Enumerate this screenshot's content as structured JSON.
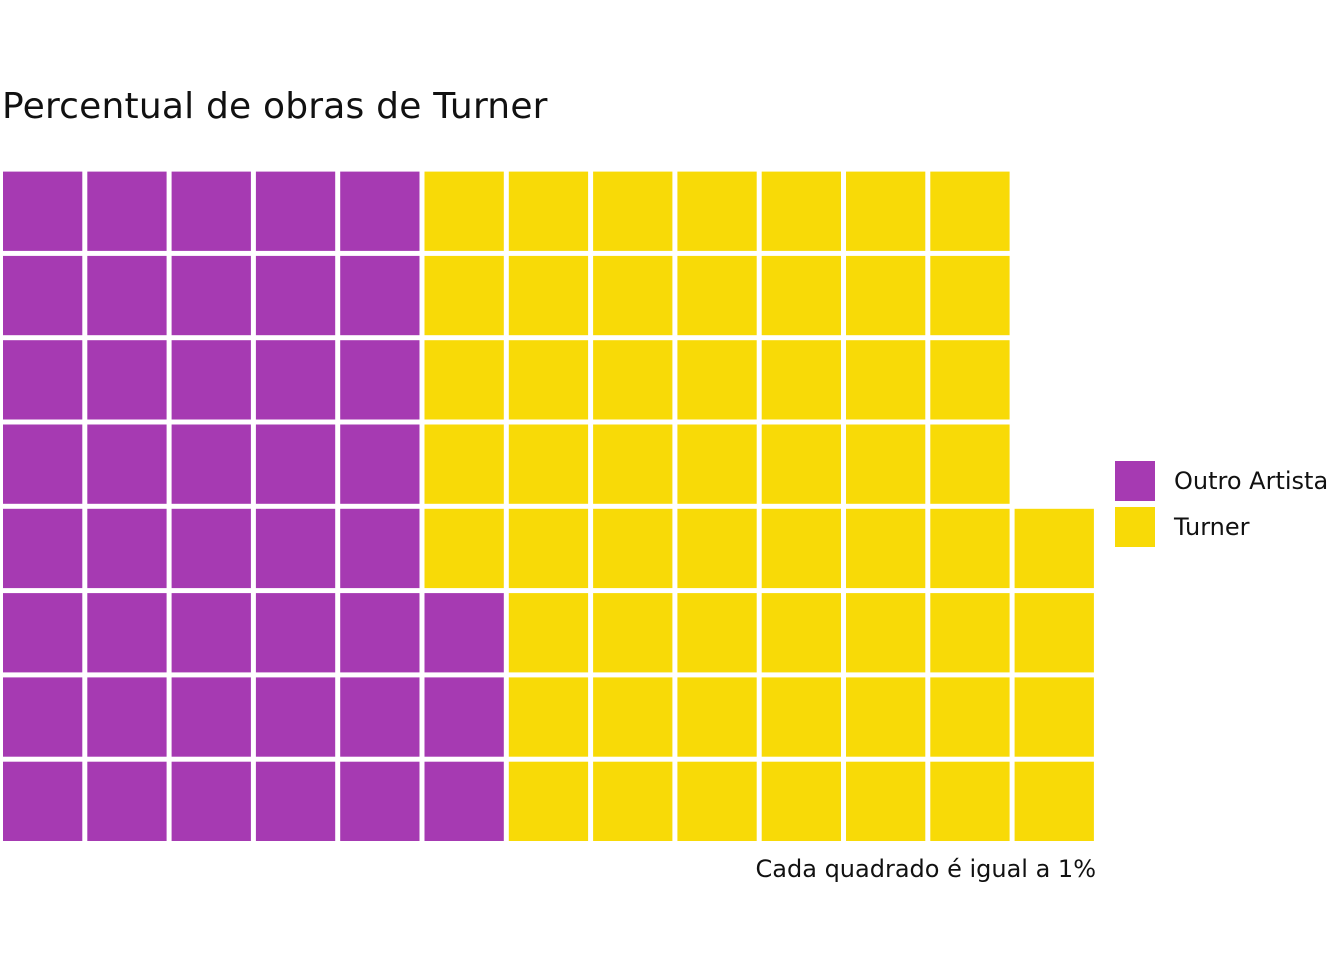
{
  "chart_data": {
    "type": "waffle",
    "title": "Percentual de obras de Turner",
    "caption": "Cada quadrado é igual a 1%",
    "columns": 13,
    "rows": 8,
    "categories": [
      "Outro Artista",
      "Turner"
    ],
    "values": [
      43,
      57
    ],
    "colors": {
      "Outro Artista": "#a63ab2",
      "Turner": "#f8da07"
    },
    "legend_position": "right",
    "grid": false
  }
}
